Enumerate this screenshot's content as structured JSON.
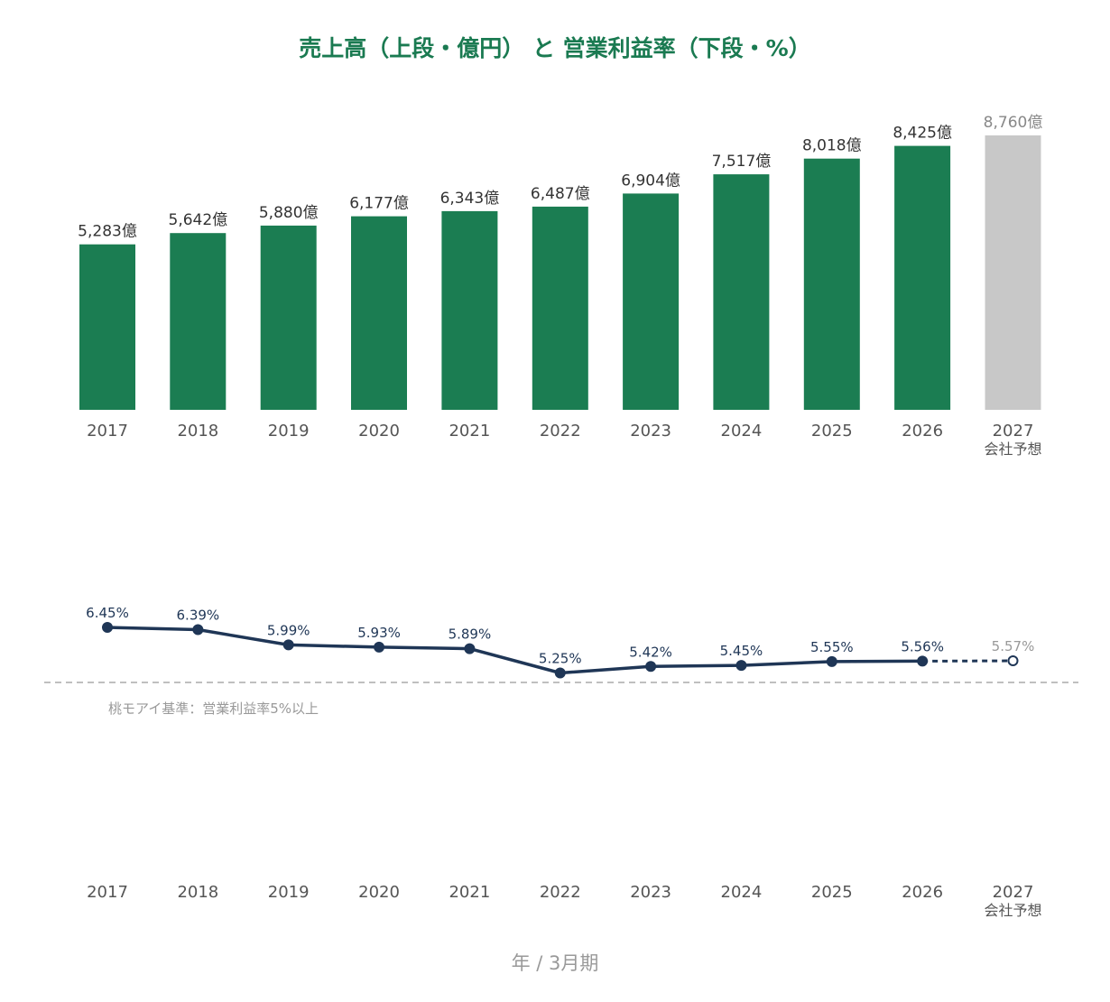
{
  "chart_data": [
    {
      "type": "bar",
      "title": "売上高（上段・億円） と 営業利益率（下段・%）",
      "categories": [
        "2017",
        "2018",
        "2019",
        "2020",
        "2021",
        "2022",
        "2023",
        "2024",
        "2025",
        "2026",
        "2027"
      ],
      "category_sublabels": [
        "",
        "",
        "",
        "",
        "",
        "",
        "",
        "",
        "",
        "",
        "会社予想"
      ],
      "values": [
        5283,
        5642,
        5880,
        6177,
        6343,
        6487,
        6904,
        7517,
        8018,
        8425,
        8760
      ],
      "value_labels": [
        "5,283億",
        "5,642億",
        "5,880億",
        "6,177億",
        "6,343億",
        "6,487億",
        "6,904億",
        "7,517億",
        "8,018億",
        "8,425億",
        "8,760億"
      ],
      "forecast_index": 10,
      "ylim": [
        0,
        8760
      ],
      "colors": {
        "actual": "#1b7d52",
        "forecast": "#c8c8c8"
      },
      "grid": false
    },
    {
      "type": "line",
      "categories": [
        "2017",
        "2018",
        "2019",
        "2020",
        "2021",
        "2022",
        "2023",
        "2024",
        "2025",
        "2026",
        "2027"
      ],
      "category_sublabels": [
        "",
        "",
        "",
        "",
        "",
        "",
        "",
        "",
        "",
        "",
        "会社予想"
      ],
      "values": [
        6.45,
        6.39,
        5.99,
        5.93,
        5.89,
        5.25,
        5.42,
        5.45,
        5.55,
        5.56,
        5.57
      ],
      "value_labels": [
        "6.45%",
        "6.39%",
        "5.99%",
        "5.93%",
        "5.89%",
        "5.25%",
        "5.42%",
        "5.45%",
        "5.55%",
        "5.56%",
        "5.57%"
      ],
      "forecast_index": 10,
      "reference_line": {
        "value": 5.0,
        "label": "桃モアイ基準：営業利益率5%以上"
      },
      "xlabel": "年 / 3月期",
      "colors": {
        "line": "#1f3656",
        "reference": "#aaaaaa"
      },
      "grid": false
    }
  ]
}
